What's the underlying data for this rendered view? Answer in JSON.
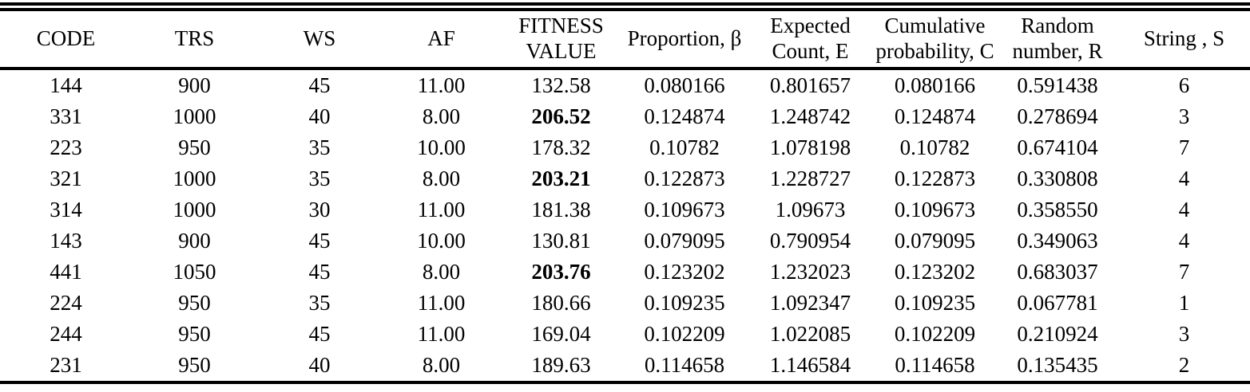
{
  "table": {
    "columns": [
      "CODE",
      "TRS",
      "WS",
      "AF",
      "FITNESS\nVALUE",
      "Proportion, β",
      "Expected\nCount, E",
      "Cumulative\nprobability, C",
      "Random\nnumber, R",
      "String , S"
    ],
    "rows": [
      [
        "144",
        "900",
        "45",
        "11.00",
        "132.58",
        "0.080166",
        "0.801657",
        "0.080166",
        "0.591438",
        "6"
      ],
      [
        "331",
        "1000",
        "40",
        "8.00",
        "206.52",
        "0.124874",
        "1.248742",
        "0.124874",
        "0.278694",
        "3"
      ],
      [
        "223",
        "950",
        "35",
        "10.00",
        "178.32",
        "0.10782",
        "1.078198",
        "0.10782",
        "0.674104",
        "7"
      ],
      [
        "321",
        "1000",
        "35",
        "8.00",
        "203.21",
        "0.122873",
        "1.228727",
        "0.122873",
        "0.330808",
        "4"
      ],
      [
        "314",
        "1000",
        "30",
        "11.00",
        "181.38",
        "0.109673",
        "1.09673",
        "0.109673",
        "0.358550",
        "4"
      ],
      [
        "143",
        "900",
        "45",
        "10.00",
        "130.81",
        "0.079095",
        "0.790954",
        "0.079095",
        "0.349063",
        "4"
      ],
      [
        "441",
        "1050",
        "45",
        "8.00",
        "203.76",
        "0.123202",
        "1.232023",
        "0.123202",
        "0.683037",
        "7"
      ],
      [
        "224",
        "950",
        "35",
        "11.00",
        "180.66",
        "0.109235",
        "1.092347",
        "0.109235",
        "0.067781",
        "1"
      ],
      [
        "244",
        "950",
        "45",
        "11.00",
        "169.04",
        "0.102209",
        "1.022085",
        "0.102209",
        "0.210924",
        "3"
      ],
      [
        "231",
        "950",
        "40",
        "8.00",
        "189.63",
        "0.114658",
        "1.146584",
        "0.114658",
        "0.135435",
        "2"
      ]
    ],
    "bold_column_index": 4,
    "bold_row_indices": [
      1,
      3,
      6
    ],
    "text_color": "#000000",
    "background_color": "#ffffff",
    "rule_color": "#000000"
  }
}
